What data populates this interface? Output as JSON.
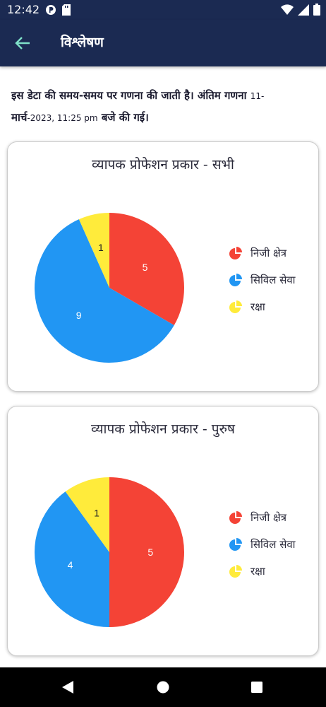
{
  "status_bar": {
    "time": "12:42"
  },
  "app_bar": {
    "title": "विश्लेषण"
  },
  "info": {
    "part1": "इस डेटा की समय-समय पर गणना की जाती है। अंतिम गणना ",
    "date_small_1": "11-",
    "part2": "मार्च",
    "date_small_2": "-2023, 11:25 pm",
    "part3": " बजे की गई।"
  },
  "colors": {
    "header_bg": "#1b2a52",
    "back_arrow": "#7ee0c8",
    "private": "#f44336",
    "civil": "#2196f3",
    "defence": "#ffeb3b"
  },
  "chart_data": [
    {
      "type": "pie",
      "title": "व्यापक प्रोफेशन प्रकार - सभी",
      "categories": [
        "निजी क्षेत्र",
        "सिविल सेवा",
        "रक्षा"
      ],
      "values": [
        5,
        9,
        1
      ],
      "legend_position": "right"
    },
    {
      "type": "pie",
      "title": "व्यापक प्रोफेशन प्रकार - पुरुष",
      "categories": [
        "निजी क्षेत्र",
        "सिविल सेवा",
        "रक्षा"
      ],
      "values": [
        5,
        4,
        1
      ],
      "legend_position": "right"
    }
  ]
}
